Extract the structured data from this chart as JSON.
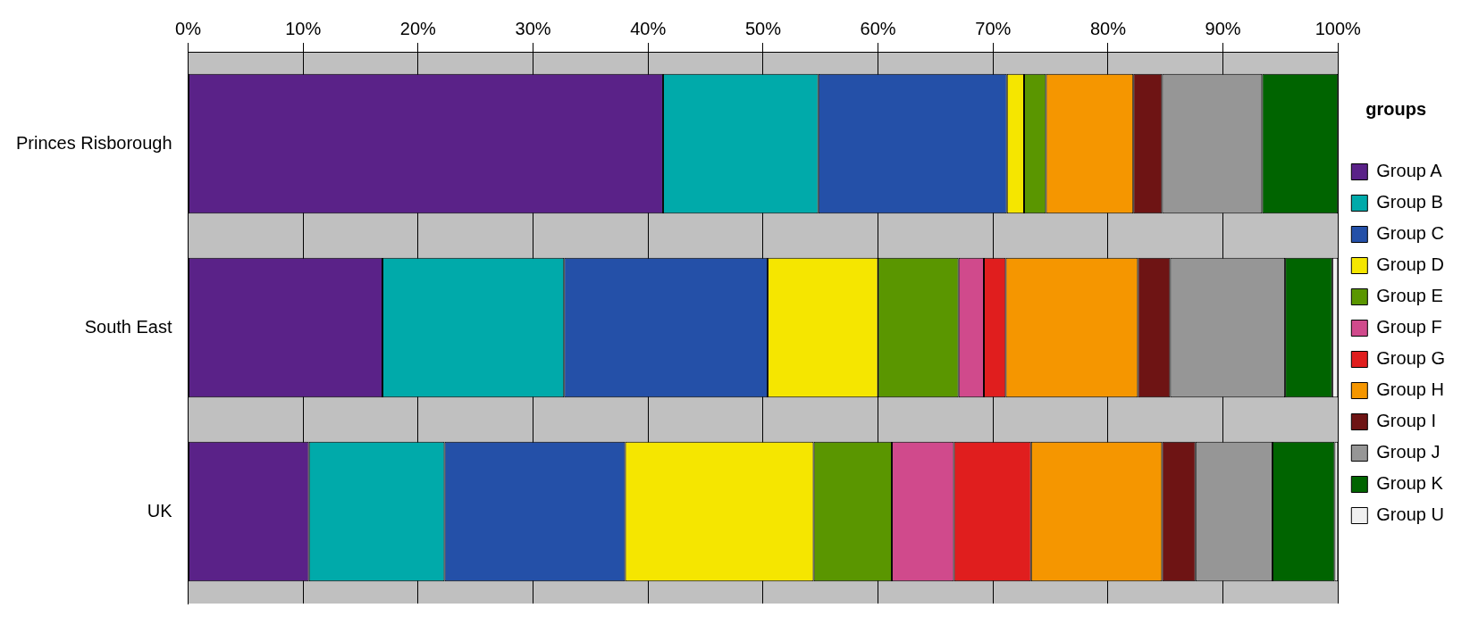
{
  "chart_data": {
    "type": "bar",
    "orientation": "horizontal",
    "stacked": true,
    "legend_title": "groups",
    "legend": "right",
    "grid": "x",
    "categories": [
      "Princes Risborough",
      "South East",
      "UK"
    ],
    "xlim": [
      0,
      100
    ],
    "xticks": [
      {
        "value": 0,
        "label": "0%"
      },
      {
        "value": 10,
        "label": "10%"
      },
      {
        "value": 20,
        "label": "20%"
      },
      {
        "value": 30,
        "label": "30%"
      },
      {
        "value": 40,
        "label": "40%"
      },
      {
        "value": 50,
        "label": "50%"
      },
      {
        "value": 60,
        "label": "60%"
      },
      {
        "value": 70,
        "label": "70%"
      },
      {
        "value": 80,
        "label": "80%"
      },
      {
        "value": 90,
        "label": "90%"
      },
      {
        "value": 100,
        "label": "100%"
      }
    ],
    "series": [
      {
        "name": "Group A",
        "color": "#5a2288",
        "values": [
          41.3,
          16.9,
          10.5
        ]
      },
      {
        "name": "Group B",
        "color": "#00aaaa",
        "values": [
          13.5,
          15.8,
          11.8
        ]
      },
      {
        "name": "Group C",
        "color": "#2450a8",
        "values": [
          16.4,
          17.7,
          15.7
        ]
      },
      {
        "name": "Group D",
        "color": "#f5e600",
        "values": [
          1.5,
          9.6,
          16.4
        ]
      },
      {
        "name": "Group E",
        "color": "#5a9600",
        "values": [
          1.9,
          7.0,
          6.8
        ]
      },
      {
        "name": "Group F",
        "color": "#d04a8c",
        "values": [
          0,
          2.2,
          5.4
        ]
      },
      {
        "name": "Group G",
        "color": "#e01e1e",
        "values": [
          0,
          1.9,
          6.7
        ]
      },
      {
        "name": "Group H",
        "color": "#f59600",
        "values": [
          7.6,
          11.5,
          11.4
        ]
      },
      {
        "name": "Group I",
        "color": "#6e1414",
        "values": [
          2.5,
          2.8,
          2.9
        ]
      },
      {
        "name": "Group J",
        "color": "#969696",
        "values": [
          8.7,
          10.0,
          6.7
        ]
      },
      {
        "name": "Group K",
        "color": "#006400",
        "values": [
          6.6,
          4.1,
          5.4
        ]
      },
      {
        "name": "Group U",
        "color": "#f0f0f0",
        "values": [
          0,
          0.5,
          0.3
        ]
      }
    ]
  }
}
